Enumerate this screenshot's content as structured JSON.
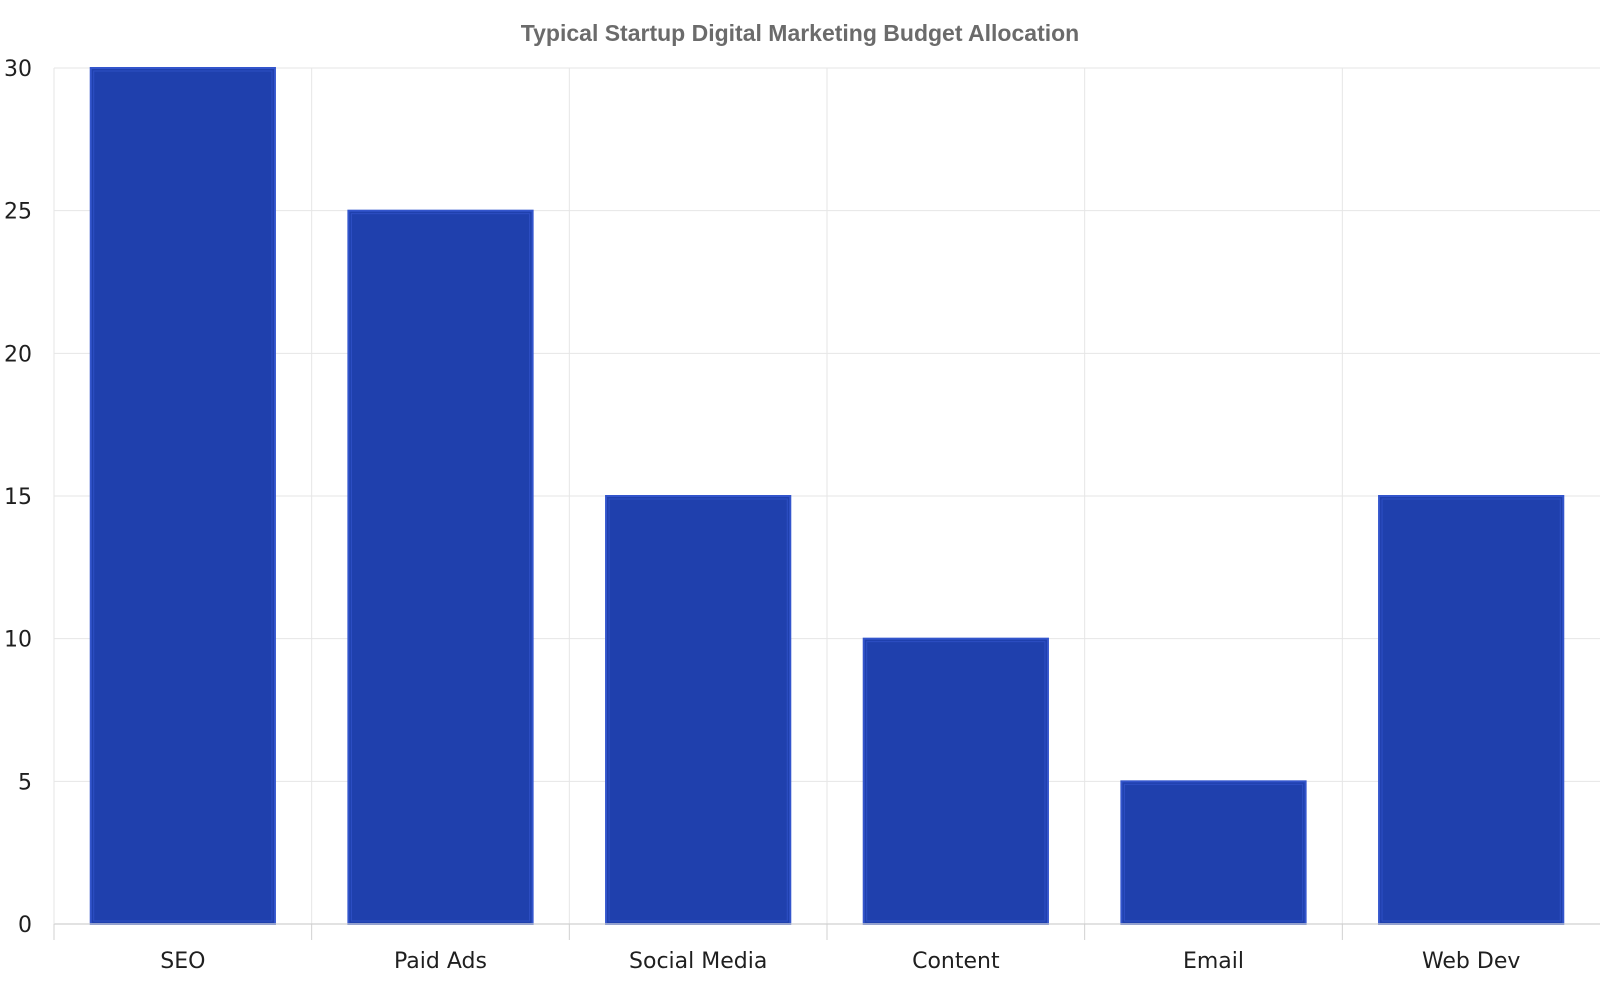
{
  "chart_data": {
    "type": "bar",
    "title": "Typical Startup Digital Marketing Budget Allocation",
    "xlabel": "",
    "ylabel": "",
    "categories": [
      "SEO",
      "Paid Ads",
      "Social Media",
      "Content",
      "Email",
      "Web Dev"
    ],
    "values": [
      30,
      25,
      15,
      10,
      5,
      15
    ],
    "ylim": [
      0,
      30
    ],
    "yticks": [
      0,
      5,
      10,
      15,
      20,
      25,
      30
    ],
    "grid": true,
    "legend": "none",
    "colors": {
      "bar_fill": "#1f40ad",
      "bar_stroke": "#3355cc"
    }
  }
}
